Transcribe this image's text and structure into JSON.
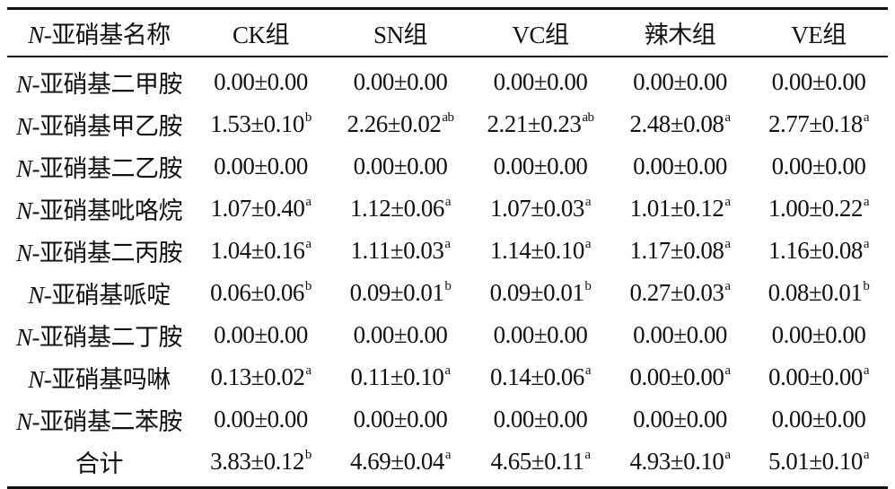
{
  "table": {
    "header": {
      "name_prefix": "N",
      "name_rest": "-亚硝基名称",
      "groups": [
        "CK组",
        "SN组",
        "VC组",
        "辣木组",
        "VE组"
      ]
    },
    "rows": [
      {
        "prefix": "N",
        "name": "-亚硝基二甲胺",
        "cells": [
          {
            "value": "0.00±0.00",
            "sup": ""
          },
          {
            "value": "0.00±0.00",
            "sup": ""
          },
          {
            "value": "0.00±0.00",
            "sup": ""
          },
          {
            "value": "0.00±0.00",
            "sup": ""
          },
          {
            "value": "0.00±0.00",
            "sup": ""
          }
        ]
      },
      {
        "prefix": "N",
        "name": "-亚硝基甲乙胺",
        "cells": [
          {
            "value": "1.53±0.10",
            "sup": "b"
          },
          {
            "value": "2.26±0.02",
            "sup": "ab"
          },
          {
            "value": "2.21±0.23",
            "sup": "ab"
          },
          {
            "value": "2.48±0.08",
            "sup": "a"
          },
          {
            "value": "2.77±0.18",
            "sup": "a"
          }
        ]
      },
      {
        "prefix": "N",
        "name": "-亚硝基二乙胺",
        "cells": [
          {
            "value": "0.00±0.00",
            "sup": ""
          },
          {
            "value": "0.00±0.00",
            "sup": ""
          },
          {
            "value": "0.00±0.00",
            "sup": ""
          },
          {
            "value": "0.00±0.00",
            "sup": ""
          },
          {
            "value": "0.00±0.00",
            "sup": ""
          }
        ]
      },
      {
        "prefix": "N",
        "name": "-亚硝基吡咯烷",
        "cells": [
          {
            "value": "1.07±0.40",
            "sup": "a"
          },
          {
            "value": "1.12±0.06",
            "sup": "a"
          },
          {
            "value": "1.07±0.03",
            "sup": "a"
          },
          {
            "value": "1.01±0.12",
            "sup": "a"
          },
          {
            "value": "1.00±0.22",
            "sup": "a"
          }
        ]
      },
      {
        "prefix": "N",
        "name": "-亚硝基二丙胺",
        "cells": [
          {
            "value": "1.04±0.16",
            "sup": "a"
          },
          {
            "value": "1.11±0.03",
            "sup": "a"
          },
          {
            "value": "1.14±0.10",
            "sup": "a"
          },
          {
            "value": "1.17±0.08",
            "sup": "a"
          },
          {
            "value": "1.16±0.08",
            "sup": "a"
          }
        ]
      },
      {
        "prefix": "N",
        "name": "-亚硝基哌啶",
        "cells": [
          {
            "value": "0.06±0.06",
            "sup": "b"
          },
          {
            "value": "0.09±0.01",
            "sup": "b"
          },
          {
            "value": "0.09±0.01",
            "sup": "b"
          },
          {
            "value": "0.27±0.03",
            "sup": "a"
          },
          {
            "value": "0.08±0.01",
            "sup": "b"
          }
        ]
      },
      {
        "prefix": "N",
        "name": "-亚硝基二丁胺",
        "cells": [
          {
            "value": "0.00±0.00",
            "sup": ""
          },
          {
            "value": "0.00±0.00",
            "sup": ""
          },
          {
            "value": "0.00±0.00",
            "sup": ""
          },
          {
            "value": "0.00±0.00",
            "sup": ""
          },
          {
            "value": "0.00±0.00",
            "sup": ""
          }
        ]
      },
      {
        "prefix": "N",
        "name": "-亚硝基吗啉",
        "cells": [
          {
            "value": "0.13±0.02",
            "sup": "a"
          },
          {
            "value": "0.11±0.10",
            "sup": "a"
          },
          {
            "value": "0.14±0.06",
            "sup": "a"
          },
          {
            "value": "0.00±0.00",
            "sup": "a"
          },
          {
            "value": "0.00±0.00",
            "sup": "a"
          }
        ]
      },
      {
        "prefix": "N",
        "name": "-亚硝基二苯胺",
        "cells": [
          {
            "value": "0.00±0.00",
            "sup": ""
          },
          {
            "value": "0.00±0.00",
            "sup": ""
          },
          {
            "value": "0.00±0.00",
            "sup": ""
          },
          {
            "value": "0.00±0.00",
            "sup": ""
          },
          {
            "value": "0.00±0.00",
            "sup": ""
          }
        ]
      },
      {
        "prefix": "",
        "name": "合计",
        "cells": [
          {
            "value": "3.83±0.12",
            "sup": "b"
          },
          {
            "value": "4.69±0.04",
            "sup": "a"
          },
          {
            "value": "4.65±0.11",
            "sup": "a"
          },
          {
            "value": "4.93±0.10",
            "sup": "a"
          },
          {
            "value": "5.01±0.10",
            "sup": "a"
          }
        ]
      }
    ]
  }
}
